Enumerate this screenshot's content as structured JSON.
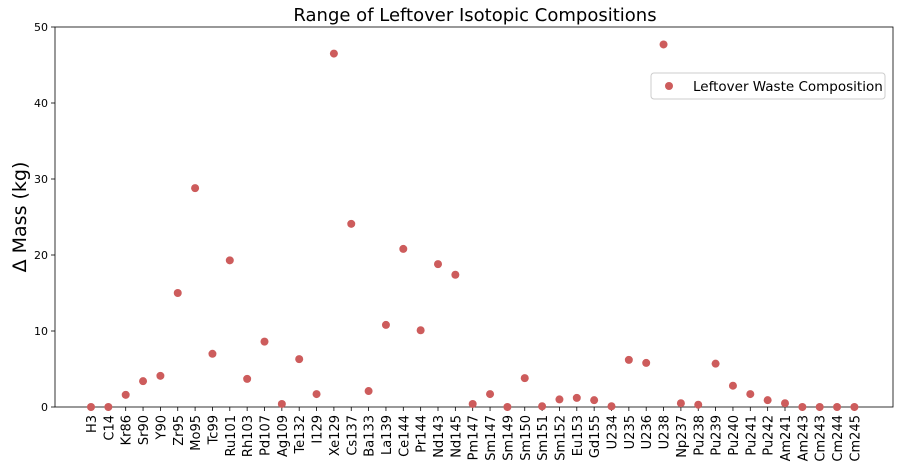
{
  "chart_data": {
    "type": "scatter",
    "title": "Range of Leftover Isotopic Compositions",
    "xlabel": "",
    "ylabel": "Δ Mass (kg)",
    "ylim": [
      0,
      50
    ],
    "yticks": [
      0,
      10,
      20,
      30,
      40,
      50
    ],
    "categories": [
      "H3",
      "C14",
      "Kr86",
      "Sr90",
      "Y90",
      "Zr95",
      "Mo95",
      "Tc99",
      "Ru101",
      "Rh103",
      "Pd107",
      "Ag109",
      "Te132",
      "I129",
      "Xe129",
      "Cs137",
      "Ba133",
      "La139",
      "Ce144",
      "Pr144",
      "Nd143",
      "Nd145",
      "Pm147",
      "Sm147",
      "Sm149",
      "Sm150",
      "Sm151",
      "Sm152",
      "Eu153",
      "Gd155",
      "U234",
      "U235",
      "U236",
      "U238",
      "Np237",
      "Pu238",
      "Pu239",
      "Pu240",
      "Pu241",
      "Pu242",
      "Am241",
      "Am243",
      "Cm243",
      "Cm244",
      "Cm245"
    ],
    "series": [
      {
        "name": "Leftover Waste Composition",
        "color": "#cd5c5c",
        "values": [
          0.0,
          0.0,
          1.6,
          3.4,
          4.1,
          15.0,
          28.8,
          7.0,
          19.3,
          3.7,
          8.6,
          0.4,
          6.3,
          1.7,
          46.5,
          24.1,
          2.1,
          10.8,
          20.8,
          10.1,
          18.8,
          17.4,
          0.4,
          1.7,
          0.0,
          3.8,
          0.1,
          1.0,
          1.2,
          0.9,
          0.1,
          6.2,
          5.8,
          47.7,
          0.5,
          0.3,
          5.7,
          2.8,
          1.7,
          0.9,
          0.5,
          0.0,
          0.0,
          0.0,
          0.0
        ]
      }
    ],
    "legend": {
      "position": "upper-right"
    },
    "grid": false
  }
}
